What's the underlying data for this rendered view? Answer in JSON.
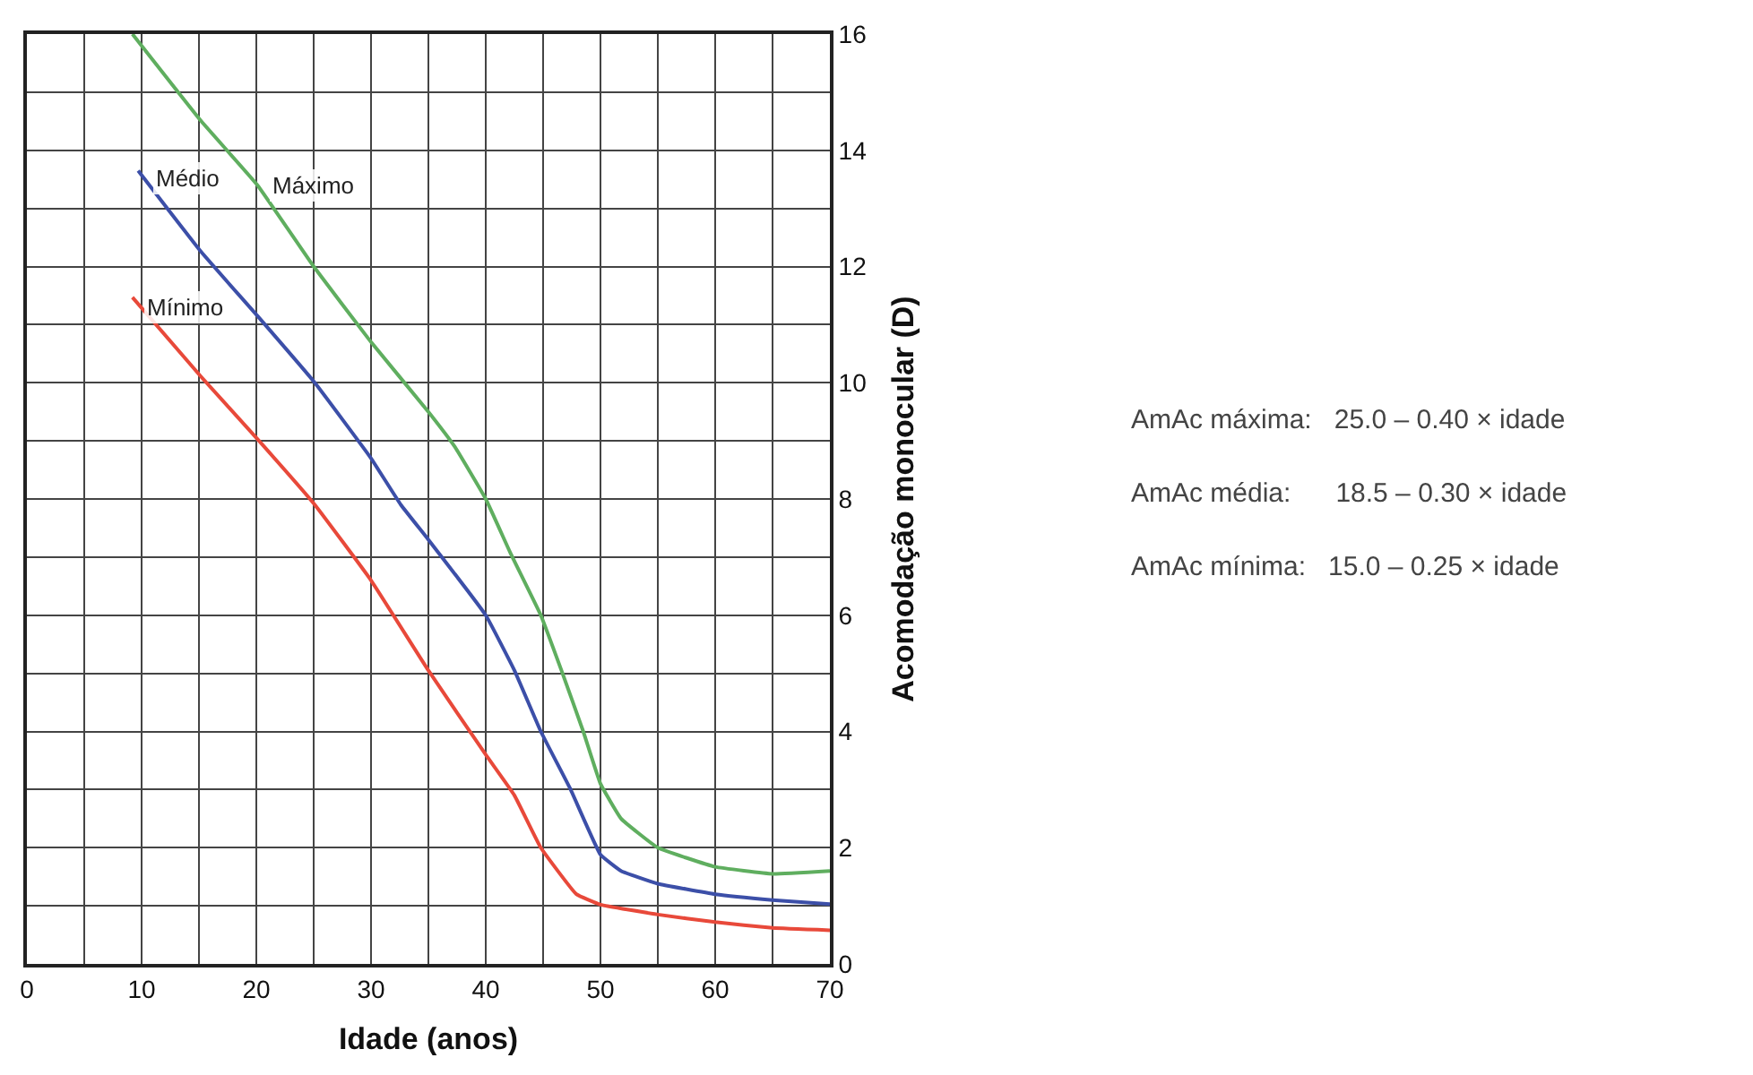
{
  "chart_data": {
    "type": "line",
    "xlabel": "Idade (anos)",
    "ylabel": "Acomodação monocular (D)",
    "xlim": [
      0,
      70
    ],
    "ylim": [
      0,
      16
    ],
    "xticks": [
      0,
      {
        "value": 5,
        "label": null
      },
      10,
      {
        "value": 15,
        "label": null
      },
      20,
      {
        "value": 25,
        "label": null
      },
      30,
      {
        "value": 35,
        "label": null
      },
      40,
      {
        "value": 45,
        "label": null
      },
      50,
      {
        "value": 55,
        "label": null
      },
      60,
      {
        "value": 65,
        "label": null
      },
      70
    ],
    "yticks": [
      0,
      {
        "value": 1,
        "label": null
      },
      2,
      {
        "value": 3,
        "label": null
      },
      4,
      {
        "value": 5,
        "label": null
      },
      6,
      {
        "value": 7,
        "label": null
      },
      8,
      {
        "value": 9,
        "label": null
      },
      10,
      {
        "value": 11,
        "label": null
      },
      12,
      {
        "value": 13,
        "label": null
      },
      14,
      {
        "value": 15,
        "label": null
      },
      16
    ],
    "grid": true,
    "legend": false,
    "marker": "none",
    "line_style": "solid",
    "series": [
      {
        "name": "Máximo",
        "color": "#5fae5f",
        "x": [
          9.2,
          15.2,
          20.1,
          25,
          30,
          35,
          37.3,
          40,
          42.2,
          44.8,
          46.6,
          48.5,
          50,
          51.8,
          55,
          60,
          65,
          70
        ],
        "values": [
          16,
          14.5,
          13.4,
          12,
          10.7,
          9.5,
          8.9,
          8,
          7.05,
          6,
          5.05,
          4,
          3.1,
          2.5,
          2,
          1.67,
          1.55,
          1.6
        ]
      },
      {
        "name": "Médio",
        "color": "#3c4fa8",
        "x": [
          9.7,
          15.2,
          20.1,
          25.1,
          30,
          32.6,
          35,
          40,
          42.5,
          44.8,
          47.4,
          50,
          51.8,
          55,
          60,
          65,
          70
        ],
        "values": [
          13.65,
          12.25,
          11.15,
          10,
          8.7,
          7.9,
          7.3,
          6,
          5.05,
          4,
          3,
          1.88,
          1.6,
          1.38,
          1.2,
          1.1,
          1.03
        ]
      },
      {
        "name": "Mínimo",
        "color": "#e8493a",
        "x": [
          9.2,
          15.2,
          20.1,
          25.1,
          30,
          35,
          40,
          42.5,
          44.8,
          47.9,
          50,
          55,
          60,
          65,
          70
        ],
        "values": [
          11.47,
          10.1,
          9.03,
          7.9,
          6.6,
          5.05,
          3.6,
          2.9,
          2,
          1.2,
          1.02,
          0.85,
          0.72,
          0.62,
          0.58
        ]
      }
    ],
    "annotations": [
      "AmAc máxima:   25.0 – 0.40 × idade",
      "AmAc média:      18.5 – 0.30 × idade",
      "AmAc mínima:   15.0 – 0.25 × idade"
    ]
  }
}
